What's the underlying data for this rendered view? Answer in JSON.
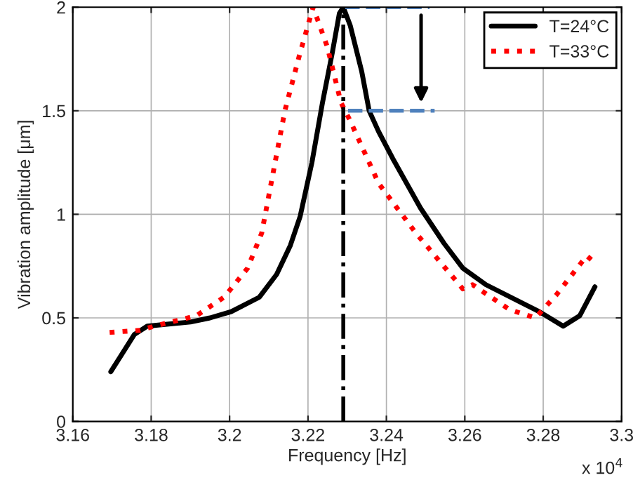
{
  "chart_data": {
    "type": "line",
    "xlabel": "Frequency [Hz]",
    "ylabel": "Vibration amplitude [μm]",
    "annotations": [
      "x 10$^{4}$"
    ],
    "xlim": [
      3.16,
      3.3
    ],
    "xticks": [
      3.16,
      3.18,
      3.2,
      3.22,
      3.24,
      3.26,
      3.28,
      3.3
    ],
    "ylim": [
      0,
      2
    ],
    "yticks": [
      0,
      0.5,
      1,
      1.5,
      2
    ],
    "grid": true,
    "legend": "top right",
    "series": [
      {
        "name": "T=24°C",
        "color": "#000000",
        "line_style": "solid",
        "x": [
          3.1697,
          3.1757,
          3.179,
          3.19,
          3.195,
          3.2004,
          3.2076,
          3.212,
          3.2155,
          3.218,
          3.221,
          3.2237,
          3.2262,
          3.228,
          3.229,
          3.2308,
          3.2337,
          3.2356,
          3.238,
          3.2416,
          3.2487,
          3.2547,
          3.2595,
          3.2654,
          3.279,
          3.2851,
          3.2893,
          3.2932
        ],
        "values": [
          0.24,
          0.42,
          0.46,
          0.48,
          0.5,
          0.53,
          0.6,
          0.71,
          0.85,
          0.99,
          1.25,
          1.54,
          1.78,
          1.97,
          2.0,
          1.91,
          1.69,
          1.5,
          1.4,
          1.27,
          1.03,
          0.86,
          0.74,
          0.66,
          0.53,
          0.46,
          0.51,
          0.65
        ]
      },
      {
        "name": "T=33°C",
        "color": "#ff0000",
        "line_style": "dotted",
        "x": [
          3.1694,
          3.1772,
          3.1808,
          3.1915,
          3.1986,
          3.2046,
          3.2082,
          3.2106,
          3.2141,
          3.2177,
          3.2213,
          3.2249,
          3.2284,
          3.2308,
          3.238,
          3.2475,
          3.2595,
          3.262,
          3.2714,
          3.278,
          3.2833,
          3.2911,
          3.2929
        ],
        "values": [
          0.43,
          0.44,
          0.46,
          0.51,
          0.6,
          0.74,
          0.91,
          1.15,
          1.5,
          1.76,
          2.0,
          1.81,
          1.54,
          1.45,
          1.15,
          0.91,
          0.64,
          0.66,
          0.54,
          0.5,
          0.61,
          0.8,
          0.77
        ]
      },
      {
        "color": "#4f81bd",
        "line_style": "dashed",
        "x": [
          3.2295,
          3.251
        ],
        "values": [
          2.0,
          2.0
        ]
      },
      {
        "color": "#4f81bd",
        "line_style": "dashed",
        "x": [
          3.2302,
          3.2523
        ],
        "values": [
          1.5,
          1.5
        ]
      }
    ],
    "ref_lines": [
      {
        "axis": "x",
        "value": 3.229,
        "color": "#000000",
        "line_style": "dashdot"
      }
    ]
  }
}
